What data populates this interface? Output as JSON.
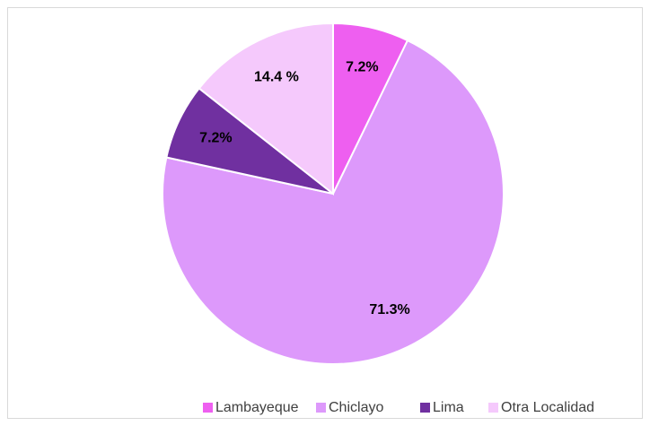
{
  "chart_data": {
    "type": "pie",
    "categories": [
      "Lambayeque",
      "Chiclayo",
      "Lima",
      "Otra Localidad"
    ],
    "values": [
      7.2,
      71.3,
      7.2,
      14.4
    ],
    "value_labels": [
      "7.2%",
      "71.3%",
      "7.2%",
      "14.4 %"
    ],
    "colors": [
      "#ee5ff0",
      "#dd99fb",
      "#7030a0",
      "#f5c9fc"
    ],
    "legend": "bottom"
  }
}
